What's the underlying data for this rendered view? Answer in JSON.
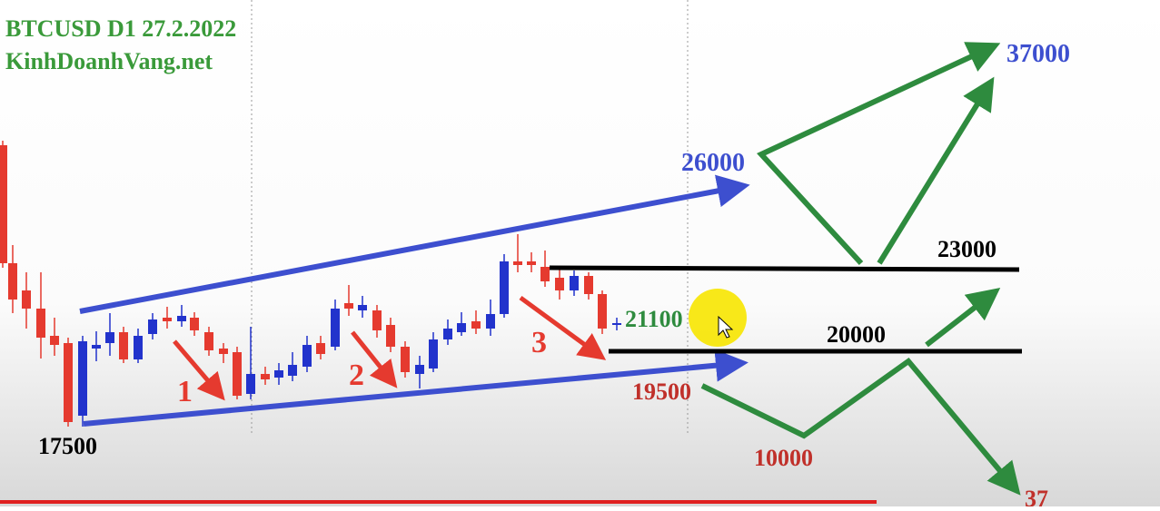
{
  "header": {
    "title": "BTCUSD D1 27.2.2022",
    "site": "KinhDoanhVang.net"
  },
  "levels": {
    "upper_target": "26000",
    "top_target": "37000",
    "resistance": "23000",
    "support": "20000",
    "current": "21100",
    "lower_target": "19500",
    "down_target": "10000",
    "bottom_target": "37",
    "start": "17500"
  },
  "waves": [
    "1",
    "2",
    "3"
  ]
}
